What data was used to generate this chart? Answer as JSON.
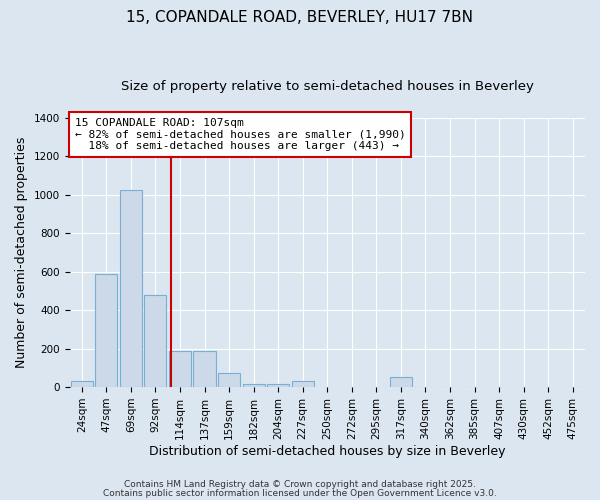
{
  "title": "15, COPANDALE ROAD, BEVERLEY, HU17 7BN",
  "subtitle": "Size of property relative to semi-detached houses in Beverley",
  "xlabel": "Distribution of semi-detached houses by size in Beverley",
  "ylabel": "Number of semi-detached properties",
  "categories": [
    "24sqm",
    "47sqm",
    "69sqm",
    "92sqm",
    "114sqm",
    "137sqm",
    "159sqm",
    "182sqm",
    "204sqm",
    "227sqm",
    "250sqm",
    "272sqm",
    "295sqm",
    "317sqm",
    "340sqm",
    "362sqm",
    "385sqm",
    "407sqm",
    "430sqm",
    "452sqm",
    "475sqm"
  ],
  "values": [
    30,
    590,
    1025,
    480,
    190,
    190,
    75,
    15,
    15,
    30,
    0,
    0,
    0,
    50,
    0,
    0,
    0,
    0,
    0,
    0,
    0
  ],
  "bar_color": "#ccd9e8",
  "bar_edge_color": "#7aafd4",
  "background_color": "#dce6f0",
  "plot_bg_color": "#dce6f0",
  "grid_color": "#ffffff",
  "ylim": [
    0,
    1400
  ],
  "yticks": [
    0,
    200,
    400,
    600,
    800,
    1000,
    1200,
    1400
  ],
  "property_label": "15 COPANDALE ROAD: 107sqm",
  "pct_smaller": 82,
  "pct_larger": 18,
  "n_smaller": 1990,
  "n_larger": 443,
  "vline_x_index": 3.65,
  "annotation_box_color": "#cc0000",
  "footer_line1": "Contains HM Land Registry data © Crown copyright and database right 2025.",
  "footer_line2": "Contains public sector information licensed under the Open Government Licence v3.0.",
  "title_fontsize": 11,
  "subtitle_fontsize": 9.5,
  "tick_fontsize": 7.5,
  "label_fontsize": 9,
  "annot_fontsize": 8
}
